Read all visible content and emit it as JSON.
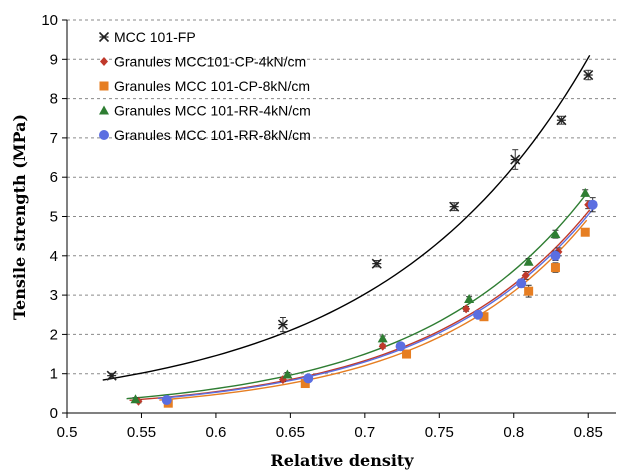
{
  "chart_data": {
    "type": "scatter",
    "xlabel": "Relative density",
    "ylabel": "Tensile strength (MPa)",
    "xlim": [
      0.5,
      0.87
    ],
    "ylim": [
      0,
      10
    ],
    "xticks": [
      "0.5",
      "0.55",
      "0.6",
      "0.65",
      "0.7",
      "0.75",
      "0.8",
      "0.85"
    ],
    "yticks": [
      "0",
      "1",
      "2",
      "3",
      "4",
      "5",
      "6",
      "7",
      "8",
      "9",
      "10"
    ],
    "grid": "horizontal-dashed",
    "legend_position": "top-left",
    "series": [
      {
        "name": "MCC 101-FP",
        "marker": "star",
        "color": "#000000",
        "x": [
          0.53,
          0.645,
          0.708,
          0.76,
          0.801,
          0.832,
          0.85
        ],
        "y": [
          0.95,
          2.25,
          3.8,
          5.25,
          6.45,
          7.45,
          8.6
        ],
        "err": [
          0.06,
          0.18,
          0.08,
          0.1,
          0.25,
          0.1,
          0.12
        ],
        "fit": {
          "a": 0.0184,
          "b": 7.29
        }
      },
      {
        "name": "Granules MCC101-CP-4kN/cm",
        "marker": "diamond",
        "color": "#c0392b",
        "x": [
          0.548,
          0.645,
          0.712,
          0.768,
          0.808,
          0.83,
          0.85
        ],
        "y": [
          0.3,
          0.85,
          1.7,
          2.65,
          3.5,
          4.1,
          5.3
        ],
        "err": [
          0.04,
          0.05,
          0.05,
          0.06,
          0.1,
          0.1,
          0.1
        ],
        "fit": {
          "a": 0.00248,
          "b": 8.98
        }
      },
      {
        "name": "Granules MCC 101-CP-8kN/cm",
        "marker": "square",
        "color": "#e67e22",
        "x": [
          0.568,
          0.66,
          0.728,
          0.78,
          0.81,
          0.828,
          0.848
        ],
        "y": [
          0.25,
          0.75,
          1.5,
          2.45,
          3.1,
          3.7,
          4.6
        ],
        "err": [
          0.03,
          0.04,
          0.05,
          0.06,
          0.15,
          0.12,
          0.08
        ],
        "fit": {
          "a": 0.00165,
          "b": 9.42
        }
      },
      {
        "name": "Granules MCC 101-RR-4kN/cm",
        "marker": "triangle",
        "color": "#2e7d32",
        "x": [
          0.546,
          0.648,
          0.712,
          0.77,
          0.81,
          0.828,
          0.848
        ],
        "y": [
          0.35,
          0.98,
          1.9,
          2.9,
          3.85,
          4.55,
          5.6
        ],
        "err": [
          0.04,
          0.05,
          0.06,
          0.06,
          0.08,
          0.1,
          0.08
        ],
        "fit": {
          "a": 0.0031,
          "b": 8.83
        }
      },
      {
        "name": "Granules MCC 101-RR-8kN/cm",
        "marker": "circle",
        "color": "#5b6ee1",
        "x": [
          0.567,
          0.662,
          0.724,
          0.776,
          0.805,
          0.828,
          0.853
        ],
        "y": [
          0.33,
          0.88,
          1.7,
          2.5,
          3.3,
          4.0,
          5.3
        ],
        "err": [
          0.03,
          0.04,
          0.05,
          0.06,
          0.1,
          0.12,
          0.18
        ],
        "fit": {
          "a": 0.00232,
          "b": 9.04
        }
      }
    ]
  }
}
